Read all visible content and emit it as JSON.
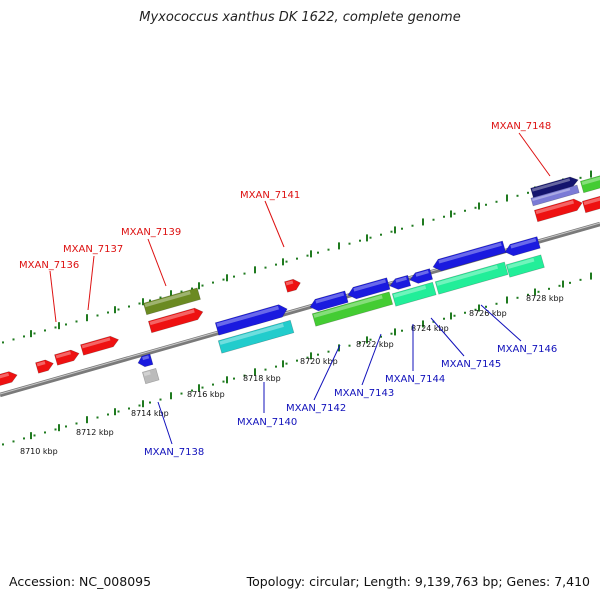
{
  "title": "Myxococcus xanthus DK 1622, complete genome",
  "footer": {
    "accession": "Accession: NC_008095",
    "topology": "Topology: circular; Length: 9,139,763 bp; Genes: 7,410"
  },
  "colors": {
    "backbone": "#7a7a7a",
    "tick": "#1f7a1f",
    "fwd_label": "#dd1111",
    "rev_label": "#1111bb",
    "red": "#ee1111",
    "blue": "#1a1adf",
    "green": "#44cc33",
    "cyan": "#22cccc",
    "olive": "#6b8a22",
    "navy": "#14146e",
    "lavender": "#7b7bd6",
    "spring": "#22ee99",
    "gray": "#bbbbbb"
  },
  "tick_labels": [
    "8710 kbp",
    "8712 kbp",
    "8714 kbp",
    "8716 kbp",
    "8718 kbp",
    "8720 kbp",
    "8722 kbp",
    "8724 kbp",
    "8726 kbp",
    "8728 kbp"
  ],
  "gene_labels_top": [
    "MXAN_7136",
    "MXAN_7137",
    "MXAN_7139",
    "MXAN_7141",
    "MXAN_7148"
  ],
  "gene_labels_bottom": [
    "MXAN_7138",
    "MXAN_7140",
    "MXAN_7142",
    "MXAN_7143",
    "MXAN_7144",
    "MXAN_7145",
    "MXAN_7146"
  ]
}
